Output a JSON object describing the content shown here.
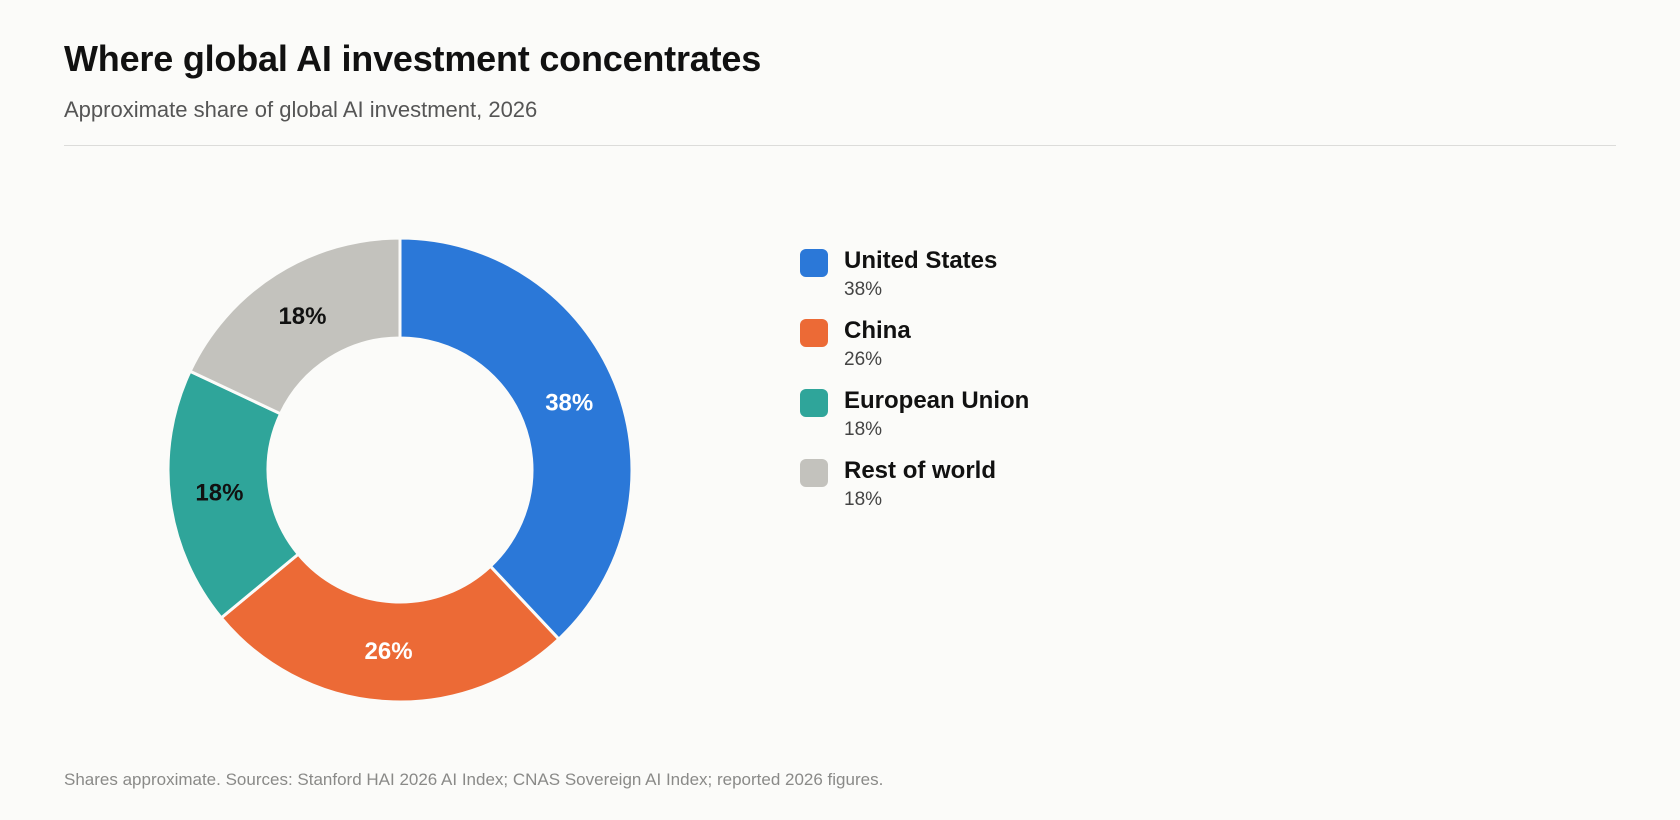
{
  "header": {
    "title": "Where global AI investment concentrates",
    "subtitle": "Approximate share of global AI investment, 2026"
  },
  "chart_data": {
    "type": "pie",
    "variant": "donut",
    "title": "Where global AI investment concentrates",
    "subtitle": "Approximate share of global AI investment, 2026",
    "legend_position": "right",
    "slices": [
      {
        "name": "United States",
        "value": 38,
        "label": "38%",
        "color": "#2b78d8",
        "label_color": "#ffffff"
      },
      {
        "name": "China",
        "value": 26,
        "label": "26%",
        "color": "#ec6a36",
        "label_color": "#ffffff"
      },
      {
        "name": "European Union",
        "value": 18,
        "label": "18%",
        "color": "#2fa59a",
        "label_color": "#111111"
      },
      {
        "name": "Rest of world",
        "value": 18,
        "label": "18%",
        "color": "#c3c2bd",
        "label_color": "#111111"
      }
    ]
  },
  "footer": {
    "note": "Shares approximate. Sources: Stanford HAI 2026 AI Index; CNAS Sovereign AI Index; reported 2026 figures."
  }
}
